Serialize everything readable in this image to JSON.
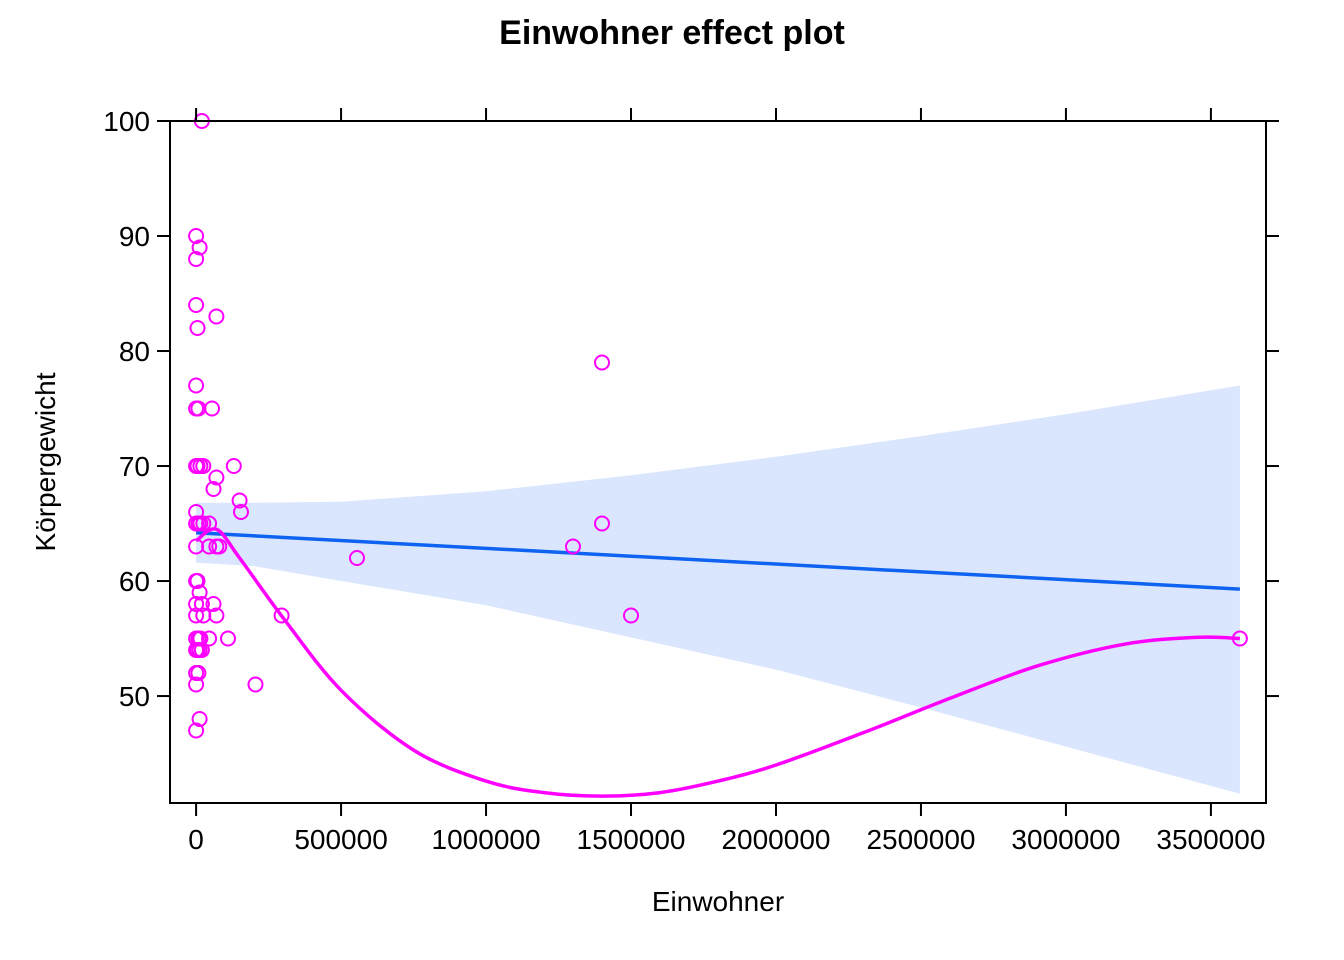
{
  "chart_data": {
    "type": "scatter",
    "title": "Einwohner effect plot",
    "xlabel": "Einwohner",
    "ylabel": "Körpergewicht",
    "xlim": [
      -90000,
      3690000
    ],
    "ylim": [
      40.7,
      100
    ],
    "x_ticks": [
      0,
      500000,
      1000000,
      1500000,
      2000000,
      2500000,
      3000000,
      3500000
    ],
    "x_tick_labels": [
      "0",
      "500000",
      "1000000",
      "1500000",
      "2000000",
      "2500000",
      "3000000",
      "3500000"
    ],
    "y_ticks": [
      50,
      60,
      70,
      80,
      90,
      100
    ],
    "y_tick_labels": [
      "50",
      "60",
      "70",
      "80",
      "90",
      "100"
    ],
    "grid": false,
    "legend": "none",
    "colors": {
      "points": "#ff00ff",
      "fit_line": "#0e63f0",
      "confidence_band": "#dae6fd",
      "smooth_line": "#ff00ff"
    },
    "points": [
      {
        "x": 20000,
        "y": 100
      },
      {
        "x": 0,
        "y": 90
      },
      {
        "x": 12000,
        "y": 89
      },
      {
        "x": 0,
        "y": 88
      },
      {
        "x": 0,
        "y": 84
      },
      {
        "x": 70000,
        "y": 83
      },
      {
        "x": 5000,
        "y": 82
      },
      {
        "x": 0,
        "y": 77
      },
      {
        "x": 0,
        "y": 75
      },
      {
        "x": 8000,
        "y": 75
      },
      {
        "x": 55000,
        "y": 75
      },
      {
        "x": 0,
        "y": 70
      },
      {
        "x": 5000,
        "y": 70
      },
      {
        "x": 15000,
        "y": 70
      },
      {
        "x": 25000,
        "y": 70
      },
      {
        "x": 130000,
        "y": 70
      },
      {
        "x": 70000,
        "y": 69
      },
      {
        "x": 60000,
        "y": 68
      },
      {
        "x": 150000,
        "y": 67
      },
      {
        "x": 0,
        "y": 66
      },
      {
        "x": 155000,
        "y": 66
      },
      {
        "x": 0,
        "y": 65
      },
      {
        "x": 8000,
        "y": 65
      },
      {
        "x": 15000,
        "y": 65
      },
      {
        "x": 25000,
        "y": 65
      },
      {
        "x": 45000,
        "y": 65
      },
      {
        "x": 0,
        "y": 63
      },
      {
        "x": 45000,
        "y": 63
      },
      {
        "x": 70000,
        "y": 63
      },
      {
        "x": 80000,
        "y": 63
      },
      {
        "x": 0,
        "y": 60
      },
      {
        "x": 5000,
        "y": 60
      },
      {
        "x": 12000,
        "y": 59
      },
      {
        "x": 0,
        "y": 58
      },
      {
        "x": 20000,
        "y": 58
      },
      {
        "x": 60000,
        "y": 58
      },
      {
        "x": 0,
        "y": 57
      },
      {
        "x": 25000,
        "y": 57
      },
      {
        "x": 70000,
        "y": 57
      },
      {
        "x": 0,
        "y": 55
      },
      {
        "x": 8000,
        "y": 55
      },
      {
        "x": 15000,
        "y": 55
      },
      {
        "x": 45000,
        "y": 55
      },
      {
        "x": 110000,
        "y": 55
      },
      {
        "x": 0,
        "y": 54
      },
      {
        "x": 5000,
        "y": 54
      },
      {
        "x": 12000,
        "y": 54
      },
      {
        "x": 20000,
        "y": 54
      },
      {
        "x": 0,
        "y": 52
      },
      {
        "x": 8000,
        "y": 52
      },
      {
        "x": 0,
        "y": 51
      },
      {
        "x": 205000,
        "y": 51
      },
      {
        "x": 12000,
        "y": 48
      },
      {
        "x": 0,
        "y": 47
      },
      {
        "x": 295000,
        "y": 57
      },
      {
        "x": 555000,
        "y": 62
      },
      {
        "x": 1300000,
        "y": 63
      },
      {
        "x": 1400000,
        "y": 79
      },
      {
        "x": 1400000,
        "y": 65
      },
      {
        "x": 1500000,
        "y": 57
      },
      {
        "x": 3600000,
        "y": 55
      }
    ],
    "fit_line": [
      {
        "x": 0,
        "y": 64.2
      },
      {
        "x": 3600000,
        "y": 59.3
      }
    ],
    "confidence_band": {
      "x": [
        0,
        200000,
        500000,
        1000000,
        1500000,
        2000000,
        2500000,
        3000000,
        3600000
      ],
      "upper": [
        66.8,
        66.8,
        66.9,
        67.8,
        69.2,
        70.8,
        72.6,
        74.5,
        77.0
      ],
      "lower": [
        61.6,
        61.3,
        60.0,
        57.9,
        55.1,
        52.3,
        49.0,
        45.6,
        41.5
      ]
    },
    "smooth_line": [
      {
        "x": 0,
        "y": 63.5
      },
      {
        "x": 70000,
        "y": 64.5
      },
      {
        "x": 150000,
        "y": 62.0
      },
      {
        "x": 300000,
        "y": 56.8
      },
      {
        "x": 500000,
        "y": 50.5
      },
      {
        "x": 750000,
        "y": 45.3
      },
      {
        "x": 1000000,
        "y": 42.6
      },
      {
        "x": 1200000,
        "y": 41.6
      },
      {
        "x": 1400000,
        "y": 41.3
      },
      {
        "x": 1600000,
        "y": 41.6
      },
      {
        "x": 1800000,
        "y": 42.6
      },
      {
        "x": 2000000,
        "y": 44.0
      },
      {
        "x": 2300000,
        "y": 46.8
      },
      {
        "x": 2600000,
        "y": 49.8
      },
      {
        "x": 2900000,
        "y": 52.6
      },
      {
        "x": 3200000,
        "y": 54.5
      },
      {
        "x": 3450000,
        "y": 55.1
      },
      {
        "x": 3600000,
        "y": 55.0
      }
    ]
  }
}
